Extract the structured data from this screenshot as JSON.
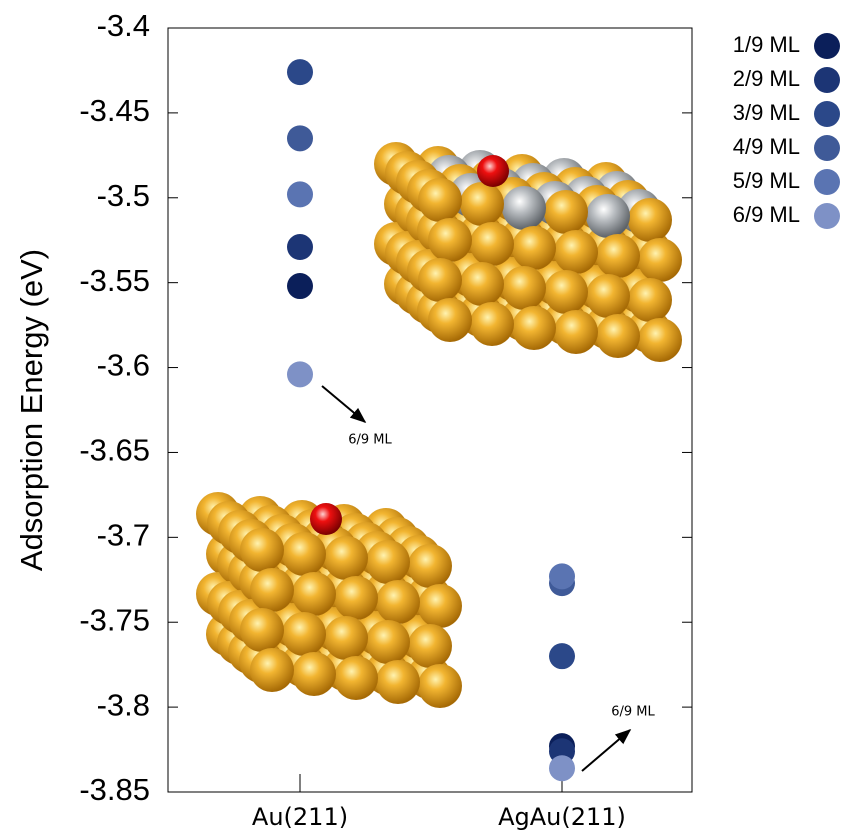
{
  "chart_data": {
    "type": "scatter",
    "ylabel": "Adsorption Energy (eV)",
    "categories": [
      "Au(211)",
      "AgAu(211)"
    ],
    "ylim": [
      -3.85,
      -3.4
    ],
    "yticks": [
      -3.4,
      -3.45,
      -3.5,
      -3.55,
      -3.6,
      -3.65,
      -3.7,
      -3.75,
      -3.8,
      -3.85
    ],
    "series": [
      {
        "name": "1/9 ML",
        "color": "#0b1f5a",
        "values": [
          -3.552,
          -3.823
        ]
      },
      {
        "name": "2/9 ML",
        "color": "#1c3575",
        "values": [
          -3.529,
          -3.826
        ]
      },
      {
        "name": "3/9 ML",
        "color": "#2b4889",
        "values": [
          -3.426,
          -3.77
        ]
      },
      {
        "name": "4/9 ML",
        "color": "#3f5a98",
        "values": [
          -3.465,
          -3.727
        ]
      },
      {
        "name": "5/9 ML",
        "color": "#5a74b2",
        "values": [
          -3.498,
          -3.723
        ]
      },
      {
        "name": "6/9 ML",
        "color": "#7e91c6",
        "values": [
          -3.604,
          -3.836
        ]
      }
    ],
    "annotations": [
      {
        "text": "6/9 ML"
      },
      {
        "text": "6/9 ML"
      }
    ]
  }
}
